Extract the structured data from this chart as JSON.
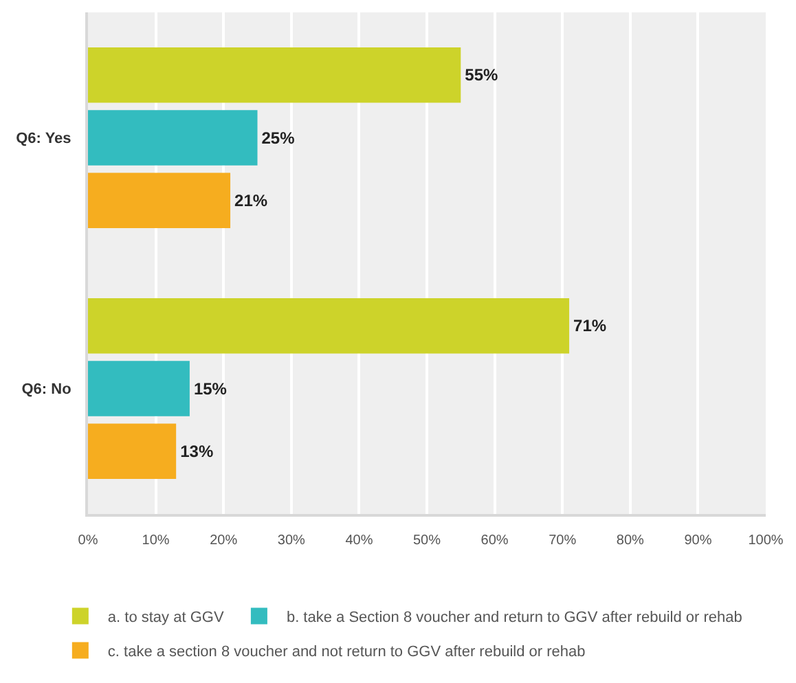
{
  "chart_data": {
    "type": "bar",
    "orientation": "horizontal",
    "categories": [
      "Q6: Yes",
      "Q6: No"
    ],
    "series": [
      {
        "name": "a. to stay at GGV",
        "color": "#cdd32a",
        "values": [
          55,
          71
        ],
        "value_labels": [
          "55%",
          "71%"
        ]
      },
      {
        "name": "b. take a Section 8 voucher and return to GGV after rebuild or rehab",
        "color": "#33bcbf",
        "values": [
          25,
          15
        ],
        "value_labels": [
          "25%",
          "15%"
        ]
      },
      {
        "name": "c. take a section 8 voucher and not return to GGV after rebuild or rehab",
        "color": "#f6ad1f",
        "values": [
          21,
          13
        ],
        "value_labels": [
          "21%",
          "13%"
        ]
      }
    ],
    "xlim": [
      0,
      100
    ],
    "xticks": [
      {
        "value": 0,
        "label": "0%"
      },
      {
        "value": 10,
        "label": "10%"
      },
      {
        "value": 20,
        "label": "20%"
      },
      {
        "value": 30,
        "label": "30%"
      },
      {
        "value": 40,
        "label": "40%"
      },
      {
        "value": 50,
        "label": "50%"
      },
      {
        "value": 60,
        "label": "60%"
      },
      {
        "value": 70,
        "label": "70%"
      },
      {
        "value": 80,
        "label": "80%"
      },
      {
        "value": 90,
        "label": "90%"
      },
      {
        "value": 100,
        "label": "100%"
      }
    ],
    "grid": "x",
    "legend": "bottom"
  }
}
